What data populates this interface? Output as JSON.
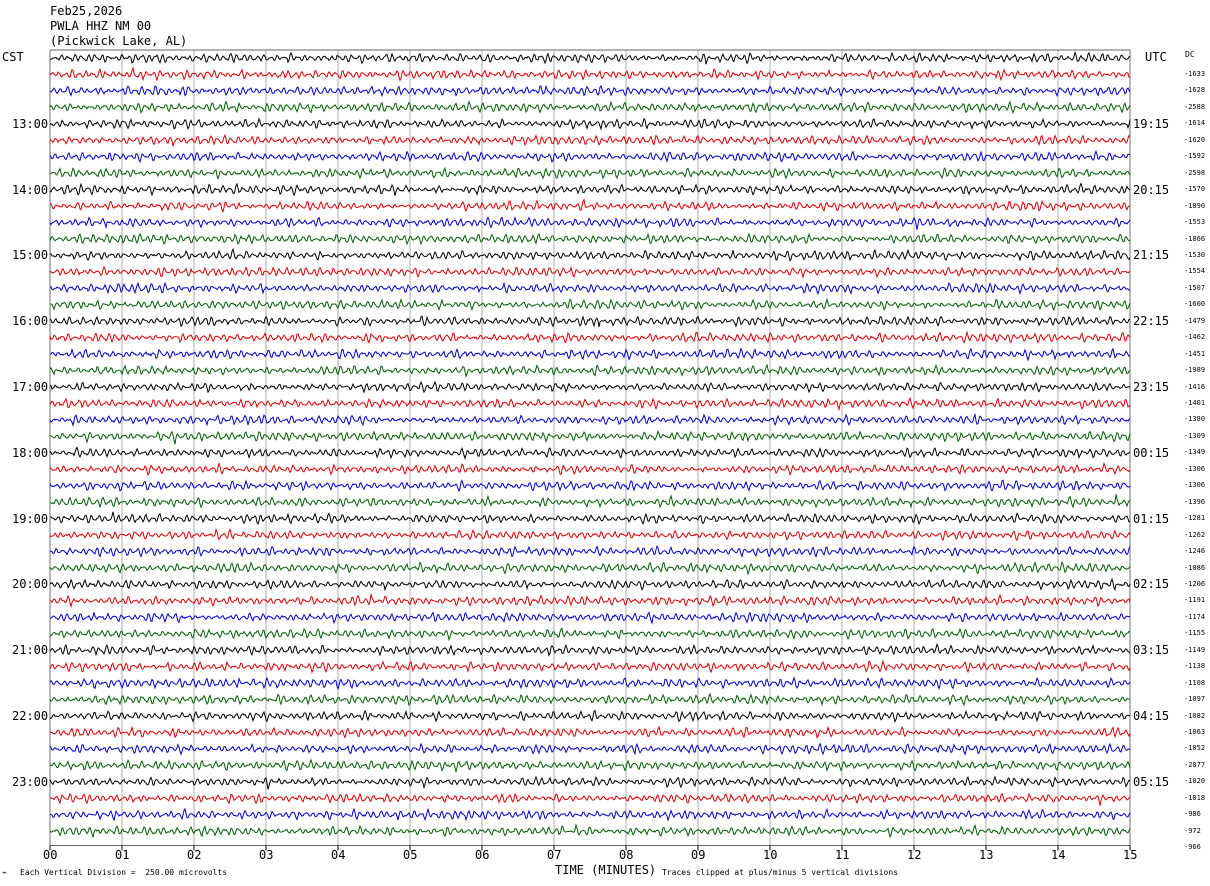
{
  "header": {
    "date": "Feb25,2026",
    "station": "PWLA HHZ NM 00",
    "location": "(Pickwick Lake, AL)"
  },
  "axes": {
    "left_tz": "CST",
    "right_tz": "UTC",
    "dc_label": "DC",
    "xlabel": "TIME (MINUTES)",
    "scale_note": "Each Vertical Division =  250.00 microvolts",
    "clip_note": "Traces clipped at plus/minus 5 vertical divisions"
  },
  "chart_data": {
    "type": "line",
    "title": "",
    "xlabel": "TIME (MINUTES)",
    "xlim": [
      0,
      15
    ],
    "x_ticks": [
      "00",
      "01",
      "02",
      "03",
      "04",
      "05",
      "06",
      "07",
      "08",
      "09",
      "10",
      "11",
      "12",
      "13",
      "14",
      "15"
    ],
    "trace_colors": [
      "#000000",
      "#e00000",
      "#0000d0",
      "#006000"
    ],
    "lines_per_hour": 4,
    "cst_hours": [
      "13:00",
      "14:00",
      "15:00",
      "16:00",
      "17:00",
      "18:00",
      "19:00",
      "20:00",
      "21:00",
      "22:00",
      "23:00"
    ],
    "utc_hours": [
      "19:15",
      "20:15",
      "21:15",
      "22:15",
      "23:15",
      "00:15",
      "01:15",
      "02:15",
      "03:15",
      "04:15",
      "05:15"
    ],
    "dc_offsets": [
      "-1633",
      "-1628",
      "-2588",
      "-1614",
      "-1620",
      "-1592",
      "-2598",
      "-1570",
      "-1890",
      "-1553",
      "-1866",
      "-1530",
      "-1554",
      "-1507",
      "-1600",
      "-1479",
      "-1462",
      "-1451",
      "-1989",
      "-1416",
      "-1401",
      "-1380",
      "-1309",
      "-1349",
      "-1306",
      "-1306",
      "-1396",
      "-1281",
      "-1262",
      "-1246",
      "-1086",
      "-1206",
      "-1191",
      "-1174",
      "-1155",
      "-1149",
      "-1138",
      "-1108",
      "-1097",
      "-1082",
      "-1063",
      "-1052",
      "-2077",
      "-1020",
      "-1018",
      "-986",
      "-972",
      "-966"
    ]
  }
}
